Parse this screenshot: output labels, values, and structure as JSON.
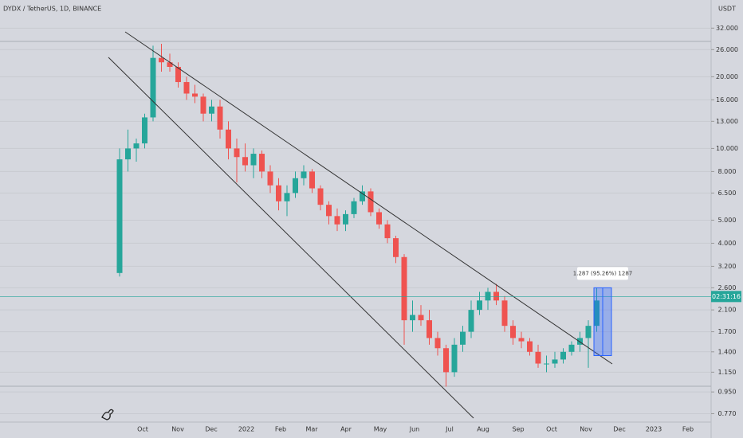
{
  "chart_data": {
    "type": "candlestick",
    "title": "DYDX / TetherUS, 1D, BINANCE",
    "y_unit": "USDT",
    "log_scale": true,
    "grid": true,
    "up_color": "#26a69a",
    "down_color": "#ef5350",
    "ylim": [
      0.71,
      42
    ],
    "yticks": [
      {
        "value": 32,
        "label": "32.000"
      },
      {
        "value": 26,
        "label": "26.000"
      },
      {
        "value": 20,
        "label": "20.000"
      },
      {
        "value": 16,
        "label": "16.000"
      },
      {
        "value": 13,
        "label": "13.000"
      },
      {
        "value": 10,
        "label": "10.000"
      },
      {
        "value": 8,
        "label": "8.000"
      },
      {
        "value": 6.5,
        "label": "6.500"
      },
      {
        "value": 5,
        "label": "5.000"
      },
      {
        "value": 4,
        "label": "4.000"
      },
      {
        "value": 3.2,
        "label": "3.200"
      },
      {
        "value": 2.6,
        "label": "2.600"
      },
      {
        "value": 2.1,
        "label": "2.100"
      },
      {
        "value": 1.7,
        "label": "1.700"
      },
      {
        "value": 1.4,
        "label": "1.400"
      },
      {
        "value": 1.15,
        "label": "1.150"
      },
      {
        "value": 0.95,
        "label": "0.950"
      },
      {
        "value": 0.77,
        "label": "0.770"
      }
    ],
    "x_labels": [
      "Oct",
      "Nov",
      "Dec",
      "2022",
      "Feb",
      "Mar",
      "Apr",
      "May",
      "Jun",
      "Jul",
      "Aug",
      "Sep",
      "Oct",
      "Nov",
      "Dec",
      "2023",
      "Feb"
    ],
    "candles": [
      [
        3,
        10,
        2.9,
        9
      ],
      [
        9,
        12,
        8,
        10
      ],
      [
        10,
        11,
        8.8,
        10.5
      ],
      [
        10.5,
        14,
        10,
        13.5
      ],
      [
        13.5,
        27,
        13,
        24
      ],
      [
        24,
        27.5,
        21,
        23
      ],
      [
        23,
        25,
        21,
        22
      ],
      [
        22,
        23,
        18,
        19
      ],
      [
        19,
        20,
        16,
        17
      ],
      [
        17,
        18.5,
        15.5,
        16.5
      ],
      [
        16.5,
        17,
        13,
        14
      ],
      [
        14,
        16,
        13,
        15
      ],
      [
        15,
        16,
        11,
        12
      ],
      [
        12,
        13,
        9,
        10
      ],
      [
        10,
        11,
        7.2,
        9.2
      ],
      [
        9.2,
        10.5,
        8,
        8.5
      ],
      [
        8.5,
        10,
        7.5,
        9.5
      ],
      [
        9.5,
        9.8,
        7.5,
        8
      ],
      [
        8,
        8.5,
        6.5,
        7
      ],
      [
        7,
        7.5,
        5.5,
        6
      ],
      [
        6,
        7,
        5.2,
        6.5
      ],
      [
        6.5,
        8,
        6.2,
        7.5
      ],
      [
        7.5,
        8.5,
        7,
        8
      ],
      [
        8,
        8.2,
        6.5,
        6.8
      ],
      [
        6.8,
        7,
        5.5,
        5.8
      ],
      [
        5.8,
        6,
        4.8,
        5.2
      ],
      [
        5.2,
        5.6,
        4.5,
        4.8
      ],
      [
        4.8,
        5.5,
        4.5,
        5.3
      ],
      [
        5.3,
        6.2,
        5.1,
        6
      ],
      [
        6,
        7,
        5.8,
        6.6
      ],
      [
        6.6,
        6.8,
        5.2,
        5.4
      ],
      [
        5.4,
        5.6,
        4.6,
        4.8
      ],
      [
        4.8,
        5,
        4,
        4.2
      ],
      [
        4.2,
        4.3,
        3.3,
        3.5
      ],
      [
        3.5,
        3.6,
        1.5,
        1.9
      ],
      [
        1.9,
        2.3,
        1.7,
        2
      ],
      [
        2,
        2.2,
        1.8,
        1.9
      ],
      [
        1.9,
        2.1,
        1.5,
        1.6
      ],
      [
        1.6,
        1.7,
        1.35,
        1.45
      ],
      [
        1.45,
        1.5,
        1,
        1.15
      ],
      [
        1.15,
        1.6,
        1.1,
        1.5
      ],
      [
        1.5,
        1.8,
        1.4,
        1.7
      ],
      [
        1.7,
        2.3,
        1.6,
        2.1
      ],
      [
        2.1,
        2.5,
        2,
        2.3
      ],
      [
        2.3,
        2.6,
        2.1,
        2.5
      ],
      [
        2.5,
        2.7,
        2.2,
        2.3
      ],
      [
        2.3,
        2.4,
        1.7,
        1.8
      ],
      [
        1.8,
        1.9,
        1.5,
        1.6
      ],
      [
        1.6,
        1.7,
        1.45,
        1.55
      ],
      [
        1.55,
        1.6,
        1.35,
        1.4
      ],
      [
        1.4,
        1.5,
        1.2,
        1.25
      ],
      [
        1.25,
        1.35,
        1.15,
        1.25
      ],
      [
        1.25,
        1.4,
        1.2,
        1.3
      ],
      [
        1.3,
        1.45,
        1.25,
        1.4
      ],
      [
        1.4,
        1.55,
        1.35,
        1.5
      ],
      [
        1.5,
        1.7,
        1.4,
        1.6
      ],
      [
        1.6,
        1.9,
        1.2,
        1.8
      ],
      [
        1.8,
        2.6,
        1.7,
        2.3
      ]
    ],
    "last_price": 2.39,
    "countdown": "02:31:16",
    "measure": {
      "from": 1.35,
      "to": 2.6,
      "label": "1.287 (95.26%) 1287"
    }
  }
}
